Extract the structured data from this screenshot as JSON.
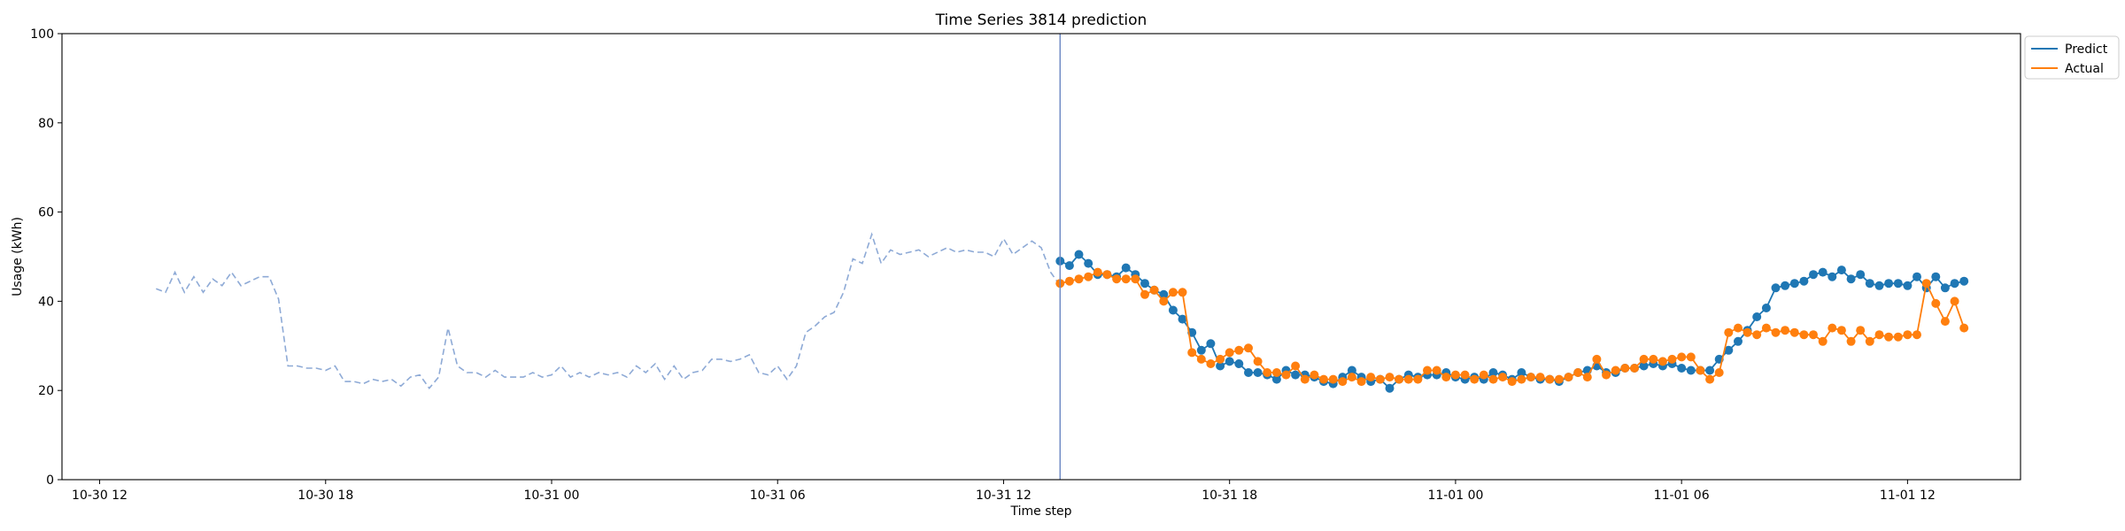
{
  "chart_data": {
    "type": "line",
    "title": "Time Series 3814 prediction",
    "xlabel": "Time step",
    "ylabel": "Usage (kWh)",
    "ylim": [
      0,
      100
    ],
    "yticks": [
      0,
      20,
      40,
      60,
      80,
      100
    ],
    "xlim": [
      "2023-10-30 11:00",
      "2023-11-01 15:00"
    ],
    "xticks": [
      {
        "t": "2023-10-30 12:00",
        "label": "10-30 12"
      },
      {
        "t": "2023-10-30 18:00",
        "label": "10-30 18"
      },
      {
        "t": "2023-10-31 00:00",
        "label": "10-31 00"
      },
      {
        "t": "2023-10-31 06:00",
        "label": "10-31 06"
      },
      {
        "t": "2023-10-31 12:00",
        "label": "10-31 12"
      },
      {
        "t": "2023-10-31 18:00",
        "label": "10-31 18"
      },
      {
        "t": "2023-11-01 00:00",
        "label": "11-01 00"
      },
      {
        "t": "2023-11-01 06:00",
        "label": "11-01 06"
      },
      {
        "t": "2023-11-01 12:00",
        "label": "11-01 12"
      }
    ],
    "grid": false,
    "legend": {
      "position": "top-right (outside)",
      "entries": [
        "Predict",
        "Actual"
      ]
    },
    "forecast_start": "2023-10-31 13:30",
    "series": [
      {
        "name": "",
        "role": "history",
        "color": "#8eaad6",
        "style": "dashed",
        "t_start": "2023-10-30 13:30",
        "step_minutes": 15,
        "values": [
          42.8,
          42.0,
          46.5,
          42.0,
          45.5,
          42.0,
          45.0,
          43.5,
          46.5,
          43.5,
          44.5,
          45.5,
          45.5,
          40.5,
          25.5,
          25.5,
          25.0,
          25.0,
          24.5,
          25.5,
          22.0,
          22.0,
          21.5,
          22.5,
          22.0,
          22.5,
          21.0,
          23.0,
          23.5,
          20.5,
          23.0,
          34.0,
          25.5,
          24.0,
          24.0,
          23.0,
          24.5,
          23.0,
          23.0,
          23.0,
          24.0,
          23.0,
          23.5,
          25.5,
          23.0,
          24.0,
          23.0,
          24.0,
          23.5,
          24.0,
          23.0,
          25.5,
          24.0,
          26.0,
          22.5,
          25.5,
          22.5,
          24.0,
          24.5,
          27.0,
          27.0,
          26.5,
          27.0,
          28.0,
          24.0,
          23.5,
          25.5,
          22.5,
          25.5,
          33.0,
          34.5,
          36.5,
          37.5,
          42.0,
          49.5,
          48.5,
          55.0,
          48.5,
          51.5,
          50.5,
          51.0,
          51.5,
          50.0,
          51.0,
          52.0,
          51.0,
          51.5,
          51.0,
          51.0,
          50.0,
          54.0,
          50.5,
          52.0,
          53.5,
          52.0,
          46.5,
          43.5
        ]
      },
      {
        "name": "Predict",
        "role": "prediction",
        "color": "#1f77b4",
        "t_start": "2023-10-31 13:30",
        "step_minutes": 15,
        "values": [
          49.0,
          48.0,
          50.5,
          48.5,
          46.0,
          46.0,
          45.5,
          47.5,
          46.0,
          44.0,
          42.5,
          41.5,
          38.0,
          36.0,
          33.0,
          29.0,
          30.5,
          25.5,
          26.5,
          26.0,
          24.0,
          24.0,
          23.5,
          22.5,
          24.5,
          23.5,
          23.5,
          23.0,
          22.0,
          21.5,
          23.0,
          24.5,
          23.0,
          22.0,
          22.5,
          20.5,
          22.5,
          23.5,
          23.0,
          23.5,
          23.5,
          24.0,
          23.0,
          22.5,
          23.0,
          22.5,
          24.0,
          23.5,
          22.5,
          24.0,
          23.0,
          22.5,
          22.5,
          22.0,
          23.0,
          24.0,
          24.5,
          25.5,
          24.0,
          24.0,
          25.0,
          25.0,
          25.5,
          26.0,
          25.5,
          26.0,
          25.0,
          24.5,
          24.5,
          24.5,
          27.0,
          29.0,
          31.0,
          33.5,
          36.5,
          38.5,
          43.0,
          43.5,
          44.0,
          44.5,
          46.0,
          46.5,
          45.5,
          47.0,
          45.0,
          46.0,
          44.0,
          43.5,
          44.0,
          44.0,
          43.5,
          45.5,
          43.0,
          45.5,
          43.0,
          44.0,
          44.5
        ]
      },
      {
        "name": "Actual",
        "role": "actual",
        "color": "#ff7f0e",
        "t_start": "2023-10-31 13:30",
        "step_minutes": 15,
        "values": [
          44.0,
          44.5,
          45.0,
          45.5,
          46.5,
          46.0,
          45.0,
          45.0,
          45.0,
          41.5,
          42.5,
          40.0,
          42.0,
          42.0,
          28.5,
          27.0,
          26.0,
          27.0,
          28.5,
          29.0,
          29.5,
          26.5,
          24.0,
          24.0,
          23.5,
          25.5,
          22.5,
          23.5,
          22.5,
          22.5,
          22.0,
          23.0,
          22.0,
          23.0,
          22.5,
          23.0,
          22.5,
          22.5,
          22.5,
          24.5,
          24.5,
          23.0,
          23.5,
          23.5,
          22.5,
          23.5,
          22.5,
          23.0,
          22.0,
          22.5,
          23.0,
          23.0,
          22.5,
          22.5,
          23.0,
          24.0,
          23.0,
          27.0,
          23.5,
          24.5,
          25.0,
          25.0,
          27.0,
          27.0,
          26.5,
          27.0,
          27.5,
          27.5,
          24.5,
          22.5,
          24.0,
          33.0,
          34.0,
          33.0,
          32.5,
          34.0,
          33.0,
          33.5,
          33.0,
          32.5,
          32.5,
          31.0,
          34.0,
          33.5,
          31.0,
          33.5,
          31.0,
          32.5,
          32.0,
          32.0,
          32.5,
          32.5,
          44.0,
          39.5,
          35.5,
          40.0,
          34.0
        ]
      }
    ]
  }
}
